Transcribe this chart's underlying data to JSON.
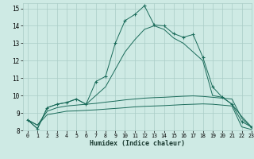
{
  "title": "",
  "xlabel": "Humidex (Indice chaleur)",
  "ylabel": "",
  "background_color": "#ceeae4",
  "grid_color": "#aaccc6",
  "line_color": "#1a6b5a",
  "xlim": [
    -0.5,
    23
  ],
  "ylim": [
    8,
    15.3
  ],
  "xticks": [
    0,
    1,
    2,
    3,
    4,
    5,
    6,
    7,
    8,
    9,
    10,
    11,
    12,
    13,
    14,
    15,
    16,
    17,
    18,
    19,
    20,
    21,
    22,
    23
  ],
  "yticks": [
    8,
    9,
    10,
    11,
    12,
    13,
    14,
    15
  ],
  "series": [
    {
      "x": [
        0,
        1,
        2,
        3,
        4,
        5,
        6,
        7,
        8,
        9,
        10,
        11,
        12,
        13,
        14,
        15,
        16,
        17,
        18,
        19,
        20,
        21,
        22,
        23
      ],
      "y": [
        8.6,
        8.1,
        9.3,
        9.5,
        9.6,
        9.8,
        9.5,
        10.8,
        11.1,
        13.0,
        14.3,
        14.65,
        15.15,
        14.05,
        14.0,
        13.55,
        13.35,
        13.5,
        12.2,
        10.5,
        9.9,
        9.5,
        8.5,
        8.2
      ],
      "has_markers": true
    },
    {
      "x": [
        0,
        1,
        2,
        3,
        4,
        5,
        6,
        7,
        8,
        9,
        10,
        11,
        12,
        13,
        14,
        15,
        16,
        17,
        18,
        19,
        20,
        21,
        22,
        23
      ],
      "y": [
        8.6,
        8.1,
        9.3,
        9.5,
        9.6,
        9.8,
        9.5,
        10.0,
        10.5,
        11.5,
        12.5,
        13.2,
        13.8,
        14.0,
        13.8,
        13.3,
        13.0,
        12.5,
        12.0,
        10.0,
        9.9,
        9.5,
        8.8,
        8.2
      ],
      "has_markers": false
    },
    {
      "x": [
        0,
        1,
        2,
        3,
        4,
        5,
        6,
        7,
        8,
        9,
        10,
        11,
        12,
        13,
        14,
        15,
        16,
        17,
        18,
        19,
        20,
        21,
        22,
        23
      ],
      "y": [
        8.6,
        8.3,
        9.1,
        9.3,
        9.4,
        9.45,
        9.5,
        9.55,
        9.62,
        9.68,
        9.75,
        9.8,
        9.85,
        9.88,
        9.9,
        9.93,
        9.96,
        9.98,
        9.95,
        9.9,
        9.85,
        9.8,
        8.7,
        8.15
      ],
      "has_markers": false
    },
    {
      "x": [
        0,
        1,
        2,
        3,
        4,
        5,
        6,
        7,
        8,
        9,
        10,
        11,
        12,
        13,
        14,
        15,
        16,
        17,
        18,
        19,
        20,
        21,
        22,
        23
      ],
      "y": [
        8.6,
        8.3,
        8.9,
        9.0,
        9.1,
        9.12,
        9.15,
        9.18,
        9.22,
        9.26,
        9.3,
        9.35,
        9.38,
        9.4,
        9.42,
        9.45,
        9.48,
        9.5,
        9.52,
        9.5,
        9.45,
        9.4,
        8.2,
        8.05
      ],
      "has_markers": false
    }
  ]
}
